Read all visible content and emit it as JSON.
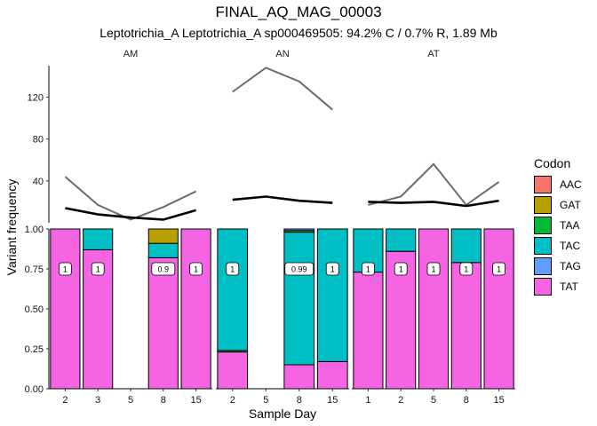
{
  "chart_data": {
    "type": "bar",
    "title": "FINAL_AQ_MAG_00003",
    "subtitle": "Leptotrichia_A Leptotrichia_A sp000469505: 94.2% C / 0.7% R, 1.89 Mb",
    "xlabel": "Sample Day",
    "ylabel": "Variant frequency",
    "legend_title": "Codon",
    "legend_position": "right",
    "grid": false,
    "codons": [
      {
        "name": "AAC",
        "color": "#F8766D"
      },
      {
        "name": "GAT",
        "color": "#B79F00"
      },
      {
        "name": "TAA",
        "color": "#00BA38"
      },
      {
        "name": "TAC",
        "color": "#00BFC4"
      },
      {
        "name": "TAG",
        "color": "#619CFF"
      },
      {
        "name": "TAT",
        "color": "#F564E3"
      }
    ],
    "upper_panel": {
      "ylim": [
        0,
        150
      ],
      "yticks": [
        "40",
        "80",
        "120"
      ],
      "line_series": [
        "gray",
        "black"
      ]
    },
    "lower_panel": {
      "ylim": [
        0,
        1
      ],
      "yticks": [
        "0.00",
        "0.25",
        "0.50",
        "0.75",
        "1.00"
      ]
    },
    "facets": [
      {
        "label": "AM",
        "days": [
          "2",
          "3",
          "5",
          "8",
          "15"
        ],
        "gray": [
          44,
          17,
          3,
          15,
          30
        ],
        "black": [
          14,
          8,
          5,
          3,
          12
        ],
        "bars": [
          [
            {
              "codon": "TAT",
              "value": 1.0
            }
          ],
          [
            {
              "codon": "TAT",
              "value": 0.87
            },
            {
              "codon": "TAC",
              "value": 0.13
            }
          ],
          [],
          [
            {
              "codon": "TAT",
              "value": 0.82
            },
            {
              "codon": "TAC",
              "value": 0.09
            },
            {
              "codon": "GAT",
              "value": 0.09
            }
          ],
          [
            {
              "codon": "TAT",
              "value": 1.0
            }
          ]
        ],
        "labels": [
          "1",
          "1",
          "",
          "0.9",
          "1"
        ]
      },
      {
        "label": "AN",
        "days": [
          "2",
          "5",
          "8",
          "15"
        ],
        "gray": [
          125,
          148,
          135,
          108
        ],
        "black": [
          22,
          25,
          21,
          19
        ],
        "bars": [
          [
            {
              "codon": "TAT",
              "value": 0.23
            },
            {
              "codon": "TAA",
              "value": 0.01
            },
            {
              "codon": "TAC",
              "value": 0.76
            }
          ],
          [],
          [
            {
              "codon": "TAT",
              "value": 0.15
            },
            {
              "codon": "TAC",
              "value": 0.83
            },
            {
              "codon": "TAA",
              "value": 0.01
            },
            {
              "codon": "TAG",
              "value": 0.01
            }
          ],
          [
            {
              "codon": "TAT",
              "value": 0.17
            },
            {
              "codon": "TAC",
              "value": 0.83
            }
          ]
        ],
        "labels": [
          "1",
          "",
          "0.99",
          "1"
        ]
      },
      {
        "label": "AT",
        "days": [
          "1",
          "2",
          "5",
          "8",
          "15"
        ],
        "gray": [
          17,
          25,
          56,
          17,
          39
        ],
        "black": [
          20,
          19,
          20,
          16,
          21
        ],
        "bars": [
          [
            {
              "codon": "TAT",
              "value": 0.73
            },
            {
              "codon": "TAC",
              "value": 0.27
            }
          ],
          [
            {
              "codon": "TAT",
              "value": 0.86
            },
            {
              "codon": "TAC",
              "value": 0.14
            }
          ],
          [
            {
              "codon": "TAT",
              "value": 1.0
            }
          ],
          [
            {
              "codon": "TAT",
              "value": 0.79
            },
            {
              "codon": "TAC",
              "value": 0.21
            }
          ],
          [
            {
              "codon": "TAT",
              "value": 1.0
            }
          ]
        ],
        "labels": [
          "1",
          "1",
          "1",
          "1",
          "1"
        ]
      }
    ]
  }
}
